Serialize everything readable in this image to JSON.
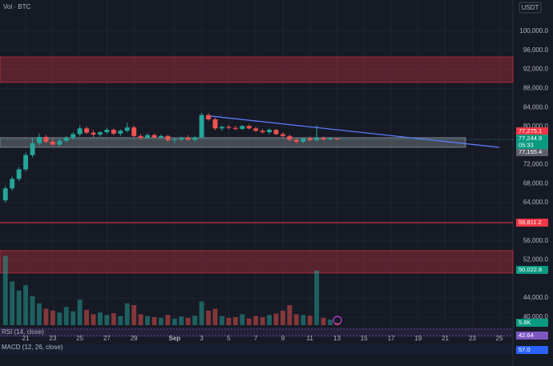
{
  "chart_data": {
    "type": "candlestick",
    "pane_label": "Vol · BTC",
    "currency": "USDT",
    "xlim": [
      19.1,
      57.0
    ],
    "xticks": [
      21,
      23,
      25,
      27,
      29,
      {
        "value": 32,
        "label": "Sep"
      },
      {
        "value": 34,
        "label": "3"
      },
      {
        "value": 36,
        "label": "5"
      },
      {
        "value": 38,
        "label": "7"
      },
      {
        "value": 40,
        "label": "9"
      },
      {
        "value": 42,
        "label": "11"
      },
      {
        "value": 44,
        "label": "13"
      },
      {
        "value": 46,
        "label": "15"
      },
      {
        "value": 48,
        "label": "17"
      },
      {
        "value": 50,
        "label": "19"
      },
      {
        "value": 52,
        "label": "21"
      },
      {
        "value": 54,
        "label": "23"
      },
      {
        "value": 56,
        "label": "25"
      }
    ],
    "ylim": [
      38300,
      106550
    ],
    "yticks": [
      {
        "value": 100000,
        "label": "100,000.0"
      },
      {
        "value": 96000,
        "label": "96,000.0"
      },
      {
        "value": 92000,
        "label": "92,000.0"
      },
      {
        "value": 88000,
        "label": "88,000.0"
      },
      {
        "value": 84000,
        "label": "84,000.0"
      },
      {
        "value": 80000,
        "label": "80,000.0"
      },
      {
        "value": 72000,
        "label": "72,000.0"
      },
      {
        "value": 68000,
        "label": "68,000.0"
      },
      {
        "value": 64000,
        "label": "64,000.0"
      },
      {
        "value": 56000,
        "label": "56,000.0"
      },
      {
        "value": 52000,
        "label": "52,000.0"
      },
      {
        "value": 44000,
        "label": "44,000.0"
      },
      {
        "value": 40000,
        "label": "40,000.0"
      }
    ],
    "up_color": "#26a69a",
    "down_color": "#ef5350",
    "x": [
      19.5,
      20,
      20.5,
      21,
      21.5,
      22,
      22.5,
      23,
      23.5,
      24,
      24.5,
      25,
      25.5,
      26,
      26.5,
      27,
      27.5,
      28,
      28.5,
      29,
      29.5,
      30,
      30.5,
      31,
      31.5,
      32,
      32.5,
      33,
      33.5,
      34,
      34.5,
      35,
      35.5,
      36,
      36.5,
      37,
      37.5,
      38,
      38.5,
      39,
      39.5,
      40,
      40.5,
      41,
      41.5,
      42,
      42.5,
      43,
      43.5,
      44
    ],
    "open": [
      64500,
      67000,
      69000,
      71000,
      74000,
      76500,
      77800,
      76800,
      76200,
      77000,
      77600,
      78400,
      79600,
      78700,
      78300,
      78800,
      79300,
      78500,
      79100,
      79800,
      78000,
      77600,
      78200,
      77700,
      78000,
      77100,
      77300,
      77600,
      77200,
      77700,
      82400,
      81500,
      79600,
      79900,
      79700,
      79500,
      80100,
      79600,
      79100,
      78800,
      79300,
      78400,
      78000,
      77200,
      76800,
      77500,
      77100,
      77600,
      77300,
      77500
    ],
    "high": [
      67500,
      69500,
      71500,
      74500,
      77500,
      78500,
      78200,
      77500,
      77400,
      78000,
      78800,
      80200,
      80000,
      79200,
      79000,
      79800,
      79600,
      79400,
      80800,
      80200,
      78400,
      78600,
      78500,
      78300,
      78200,
      77600,
      77900,
      78200,
      78000,
      82900,
      82800,
      81800,
      80200,
      80300,
      80100,
      80300,
      80400,
      79900,
      79500,
      79600,
      79500,
      78800,
      78300,
      77600,
      77700,
      77900,
      80300,
      77900,
      77800,
      77600
    ],
    "low": [
      64000,
      66500,
      68500,
      70500,
      73500,
      76000,
      76500,
      76000,
      75800,
      76600,
      77200,
      78000,
      78400,
      77800,
      77900,
      78400,
      78200,
      78000,
      78800,
      77800,
      77200,
      77300,
      77500,
      77400,
      76800,
      76500,
      76900,
      77000,
      76800,
      77500,
      81200,
      79200,
      79100,
      79400,
      79200,
      79300,
      79400,
      78800,
      78500,
      78400,
      78200,
      77700,
      76900,
      76400,
      76500,
      76900,
      76900,
      77000,
      77100,
      77100
    ],
    "close": [
      67000,
      69000,
      71000,
      74000,
      76500,
      77800,
      76800,
      76200,
      77000,
      77600,
      78400,
      79600,
      78700,
      78300,
      78800,
      79300,
      78500,
      79100,
      79800,
      78000,
      77600,
      78200,
      77700,
      78000,
      77100,
      77300,
      77600,
      77200,
      77700,
      82400,
      81500,
      79600,
      79900,
      79700,
      79500,
      80100,
      79600,
      79100,
      78800,
      79300,
      78400,
      78000,
      77200,
      76800,
      77500,
      77100,
      77600,
      77300,
      77500,
      77275.1
    ],
    "volume": {
      "ylim": [
        0,
        220000
      ],
      "values": [
        190000,
        120000,
        95000,
        110000,
        80000,
        60000,
        45000,
        40000,
        35000,
        50000,
        38000,
        70000,
        42000,
        30000,
        35000,
        28000,
        33000,
        25000,
        60000,
        55000,
        30000,
        25000,
        22000,
        20000,
        28000,
        18000,
        24000,
        20000,
        26000,
        65000,
        40000,
        45000,
        25000,
        20000,
        22000,
        30000,
        18000,
        25000,
        22000,
        28000,
        32000,
        40000,
        55000,
        30000,
        28000,
        26000,
        150000,
        20000,
        15000,
        5800
      ]
    },
    "zones": [
      {
        "from": 89250,
        "to": 94600,
        "color": "#f23645"
      },
      {
        "from": 49250,
        "to": 53950,
        "color": "#f23645"
      },
      {
        "from": 75630,
        "to": 77650,
        "color": "#b2b5be",
        "x": [
          19.1,
          53.5
        ]
      }
    ],
    "hline": {
      "value": 59811.2,
      "color": "#f23645"
    },
    "trendline": {
      "x": [
        34.67,
        55.97
      ],
      "y": [
        82185,
        75630
      ],
      "color": "#5b7cfa"
    },
    "badges": [
      {
        "value": 77275.1,
        "label": "77,275.1",
        "color": "#f23645"
      },
      {
        "value": 77244.9,
        "label": "77,244.9",
        "color": "#089981"
      },
      {
        "value": 77155.4,
        "label": "77,155.4",
        "color": "#5d606b"
      },
      {
        "value": 59811.2,
        "label": "59,811.2",
        "color": "#f23645"
      },
      {
        "value": 50022.8,
        "label": "50,022.8",
        "color": "#089981"
      },
      {
        "value": 5800,
        "label": "5.8K",
        "color": "#089981"
      },
      {
        "value": 42.64,
        "label": "42.64",
        "color": "#7e57c2"
      },
      {
        "value": 57.0,
        "label": "57.0",
        "color": "#2962ff"
      }
    ],
    "countdown": "05:33",
    "indicators": [
      {
        "label": "RSI (14, close)"
      },
      {
        "label": "MACD (12, 26, close)"
      }
    ]
  }
}
